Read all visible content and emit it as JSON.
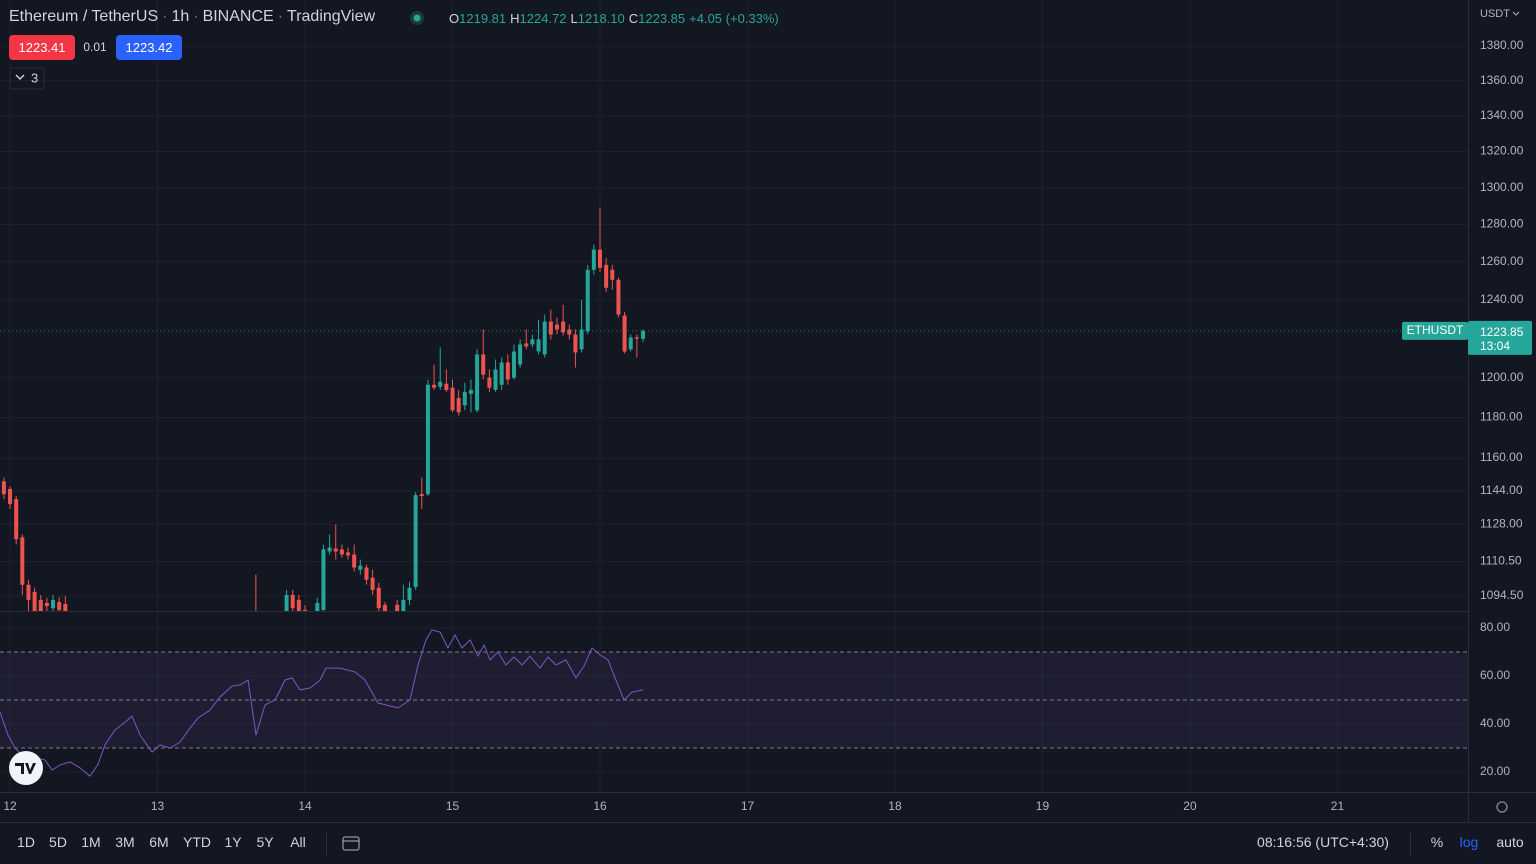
{
  "header": {
    "symbol": "Ethereum / TetherUS",
    "separator": "·",
    "interval": "1h",
    "exchange": "BINANCE",
    "source": "TradingView",
    "ohlc": [
      {
        "key": "O",
        "value": "1219.81"
      },
      {
        "key": "H",
        "value": "1224.72"
      },
      {
        "key": "L",
        "value": "1218.10"
      },
      {
        "key": "C",
        "value": "1223.85"
      }
    ],
    "change": "+4.05 (+0.33%)",
    "sell_price": "1223.41",
    "spread": "0.01",
    "buy_price": "1223.42",
    "indicator_count": "3",
    "currency": "USDT"
  },
  "toolbar": {
    "ranges": [
      "1D",
      "5D",
      "1M",
      "3M",
      "6M",
      "YTD",
      "1Y",
      "5Y",
      "All"
    ],
    "time": "08:16:56 (UTC+4:30)",
    "percent": "%",
    "log": "log",
    "auto": "auto"
  },
  "chart_data": [
    {
      "type": "candlestick",
      "log_scale": true,
      "grid": true,
      "up_color": "#26a69a",
      "down_color": "#ef5350",
      "last_price": {
        "symbol": "ETHUSDT",
        "countdown": "13:04"
      },
      "xlim": [
        11.932,
        21.885
      ],
      "xticks": [
        12,
        13,
        14,
        15,
        16,
        17,
        18,
        19,
        20,
        21
      ],
      "ylim": [
        1087.6,
        1407
      ],
      "yticks": [
        {
          "value": 1380,
          "label": "1380.00"
        },
        {
          "value": 1360,
          "label": "1360.00"
        },
        {
          "value": 1340,
          "label": "1340.00"
        },
        {
          "value": 1320,
          "label": "1320.00"
        },
        {
          "value": 1300,
          "label": "1300.00"
        },
        {
          "value": 1280,
          "label": "1280.00"
        },
        {
          "value": 1260,
          "label": "1260.00"
        },
        {
          "value": 1240,
          "label": "1240.00"
        },
        {
          "value": 1200,
          "label": "1200.00"
        },
        {
          "value": 1180,
          "label": "1180.00"
        },
        {
          "value": 1160,
          "label": "1160.00"
        },
        {
          "value": 1144,
          "label": "1144.00"
        },
        {
          "value": 1128,
          "label": "1128.00"
        },
        {
          "value": 1110.5,
          "label": "1110.50"
        },
        {
          "value": 1094.5,
          "label": "1094.50"
        }
      ],
      "x": [
        11.9583,
        12,
        12.0417,
        12.0833,
        12.125,
        12.1667,
        12.2083,
        12.25,
        12.2917,
        12.3333,
        12.375,
        13.6667,
        13.875,
        13.9167,
        13.9583,
        14,
        14.0833,
        14.125,
        14.1667,
        14.2083,
        14.25,
        14.2917,
        14.3333,
        14.375,
        14.4167,
        14.4583,
        14.5,
        14.5417,
        14.625,
        14.6667,
        14.7083,
        14.75,
        14.7917,
        14.8333,
        14.875,
        14.9167,
        14.9583,
        15,
        15.0417,
        15.0833,
        15.125,
        15.1667,
        15.2083,
        15.25,
        15.2917,
        15.3333,
        15.375,
        15.4167,
        15.4583,
        15.5,
        15.5417,
        15.5833,
        15.625,
        15.6667,
        15.7083,
        15.75,
        15.7917,
        15.8333,
        15.875,
        15.9167,
        15.9583,
        16,
        16.0417,
        16.0833,
        16.125,
        16.1667,
        16.2083,
        16.25,
        16.2917
      ],
      "open": [
        1148.7,
        1145,
        1140.1,
        1121.9,
        1099.7,
        1096.4,
        1092.7,
        1091.3,
        1088.9,
        1091.7,
        1090.8,
        1087.1,
        1087.6,
        1095,
        1092.7,
        1088.1,
        1087.6,
        1088.1,
        1115.2,
        1116.6,
        1116.2,
        1114.8,
        1113.8,
        1106.7,
        1107.7,
        1103,
        1098.3,
        1090.4,
        1090.4,
        1087.1,
        1092.7,
        1098.7,
        1142.5,
        1142.5,
        1196.4,
        1195.4,
        1196.9,
        1194.9,
        1189.7,
        1186.1,
        1191.8,
        1183.6,
        1211.8,
        1200,
        1193.8,
        1196.4,
        1207.7,
        1200,
        1206.6,
        1217.4,
        1216.9,
        1213.3,
        1211.8,
        1228.7,
        1227.1,
        1228.7,
        1224.6,
        1222,
        1214.4,
        1223.6,
        1255.8,
        1266.5,
        1258.4,
        1255.8,
        1250.5,
        1231.8,
        1214.4,
        1220.5,
        1219.81
      ],
      "high": [
        1150.6,
        1146.4,
        1141.6,
        1123.3,
        1102,
        1098.3,
        1095,
        1093.6,
        1095,
        1094,
        1094.5,
        1104.4,
        1097.3,
        1097.3,
        1095,
        1090.4,
        1093.6,
        1118.5,
        1123.3,
        1128,
        1118.5,
        1117.1,
        1118.5,
        1111.4,
        1109.1,
        1106.7,
        1100.6,
        1091.7,
        1092.7,
        1099.7,
        1101.1,
        1143.5,
        1150.6,
        1199,
        1206.6,
        1215.4,
        1204.1,
        1199,
        1193.8,
        1197.4,
        1199,
        1214.4,
        1224.6,
        1204.1,
        1209.2,
        1210.2,
        1211.8,
        1216.9,
        1219.5,
        1224.6,
        1222,
        1229.7,
        1232.3,
        1234.9,
        1230.8,
        1237.4,
        1227.1,
        1224.6,
        1240,
        1258.4,
        1269.2,
        1289.2,
        1262.2,
        1258.4,
        1251.6,
        1233.8,
        1222,
        1222,
        1224.72
      ],
      "low": [
        1140.1,
        1135.3,
        1118.5,
        1095,
        1087.6,
        1086.2,
        1083.5,
        1087.1,
        1085.8,
        1086.2,
        1085.8,
        1085.8,
        1086.2,
        1087.1,
        1084.4,
        1085.3,
        1086.7,
        1087.1,
        1113.8,
        1111.4,
        1112.3,
        1111.4,
        1105.8,
        1104.4,
        1099.7,
        1095,
        1087.6,
        1084.4,
        1085.8,
        1085.8,
        1090.4,
        1097.3,
        1135.3,
        1141.6,
        1193.8,
        1193.8,
        1192.8,
        1182.6,
        1181,
        1183.6,
        1182.6,
        1182.6,
        1199,
        1192.8,
        1192.8,
        1193.8,
        1196.4,
        1199,
        1205.1,
        1214.4,
        1215.4,
        1211.8,
        1210.2,
        1219.5,
        1222,
        1221.5,
        1219.5,
        1205.1,
        1212.8,
        1222,
        1253.2,
        1254.7,
        1244.2,
        1245.3,
        1230.8,
        1212.3,
        1213.3,
        1210.2,
        1218.1
      ],
      "close": [
        1142.5,
        1137.7,
        1121,
        1099.7,
        1092.7,
        1087.6,
        1087.1,
        1089.9,
        1092.7,
        1088.1,
        1087.1,
        1086.7,
        1095,
        1088.9,
        1085.8,
        1087.1,
        1091.3,
        1116.2,
        1117.1,
        1115.2,
        1113.8,
        1113.4,
        1107.7,
        1108.6,
        1102,
        1097.3,
        1088.9,
        1087.1,
        1087.1,
        1092.7,
        1098.3,
        1142,
        1141.6,
        1196.4,
        1194.9,
        1197.9,
        1193.8,
        1183.6,
        1182.6,
        1192.8,
        1193.8,
        1211.8,
        1201.5,
        1194.9,
        1204.1,
        1207.7,
        1199,
        1213.3,
        1216.9,
        1215.9,
        1219.5,
        1219.5,
        1228.7,
        1222,
        1224.6,
        1223.1,
        1222,
        1212.8,
        1224.6,
        1255.8,
        1266.5,
        1256.8,
        1246.3,
        1250.5,
        1232.3,
        1213.3,
        1220.5,
        1219.8,
        1223.85
      ]
    },
    {
      "type": "line",
      "grid": true,
      "color": "#7e57c2",
      "levels": [
        70,
        50,
        30
      ],
      "xlim": [
        11.932,
        21.885
      ],
      "xticks": [
        12,
        13,
        14,
        15,
        16,
        17,
        18,
        19,
        20,
        21
      ],
      "ylim": [
        11.67,
        86.67
      ],
      "yticks": [
        {
          "value": 80,
          "label": "80.00"
        },
        {
          "value": 60,
          "label": "60.00"
        },
        {
          "value": 40,
          "label": "40.00"
        },
        {
          "value": 20,
          "label": "20.00"
        }
      ],
      "x": [
        11.932,
        11.986,
        12.034,
        12.081,
        12.136,
        12.19,
        12.237,
        12.285,
        12.339,
        12.407,
        12.475,
        12.542,
        12.597,
        12.644,
        12.712,
        12.78,
        12.827,
        12.881,
        12.963,
        13.017,
        13.085,
        13.153,
        13.22,
        13.275,
        13.356,
        13.424,
        13.505,
        13.559,
        13.614,
        13.668,
        13.729,
        13.797,
        13.864,
        13.912,
        13.966,
        14.034,
        14.102,
        14.142,
        14.237,
        14.339,
        14.407,
        14.495,
        14.576,
        14.631,
        14.712,
        14.766,
        14.82,
        14.861,
        14.915,
        14.969,
        15.017,
        15.064,
        15.119,
        15.173,
        15.214,
        15.254,
        15.308,
        15.363,
        15.417,
        15.471,
        15.525,
        15.593,
        15.647,
        15.702,
        15.769,
        15.837,
        15.892,
        15.946,
        16,
        16.054,
        16.108,
        16.163,
        16.217,
        16.292
      ],
      "values": [
        45,
        35.4,
        30,
        27.1,
        28.3,
        25.8,
        25,
        20.8,
        22.9,
        24.2,
        21.7,
        18.3,
        23.3,
        31.3,
        37.5,
        40.8,
        43.3,
        35.4,
        28.3,
        31.3,
        30,
        32.5,
        38.3,
        42.5,
        45.8,
        51.3,
        55.8,
        56.3,
        58.3,
        35.4,
        47.9,
        50,
        58.3,
        59.2,
        54.2,
        55,
        58.3,
        63.3,
        63.3,
        61.7,
        58.3,
        48.8,
        47.5,
        46.7,
        50,
        64.6,
        75,
        79.2,
        78.3,
        71.7,
        77.1,
        71.7,
        75,
        68.3,
        72.9,
        66.7,
        70,
        64.6,
        67.9,
        64.6,
        68.3,
        63.3,
        67.9,
        64.6,
        66.7,
        59.2,
        64.2,
        71.7,
        68.8,
        66.7,
        58.3,
        50,
        53.3,
        54.2
      ]
    }
  ]
}
